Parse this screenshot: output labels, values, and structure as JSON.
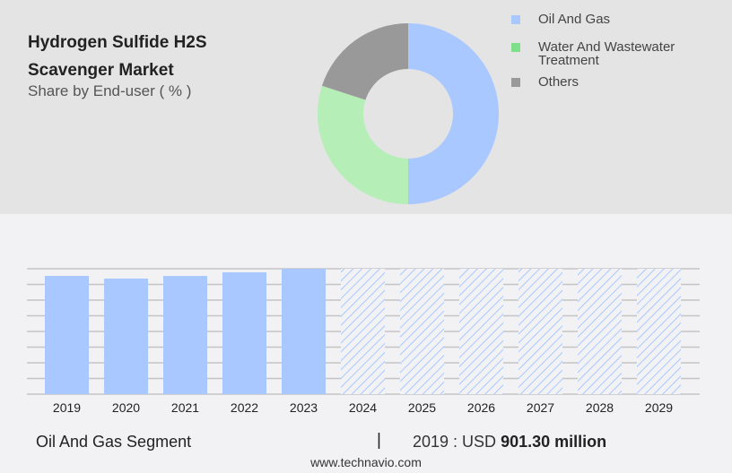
{
  "title": "Hydrogen Sulfide H2S Scavenger Market",
  "subtitle": "Share by End-user ( % )",
  "chart_data": [
    {
      "type": "pie",
      "donut": true,
      "categories": [
        "Oil And Gas",
        "Water And Wastewater Treatment",
        "Others"
      ],
      "values": [
        50,
        30,
        20
      ],
      "colors": [
        "#a8c8ff",
        "#b6eeb8",
        "#999999"
      ],
      "legend_colors": [
        "#a8c8ff",
        "#7ee08a",
        "#999999"
      ],
      "legend": "right"
    },
    {
      "type": "bar",
      "categories": [
        "2019",
        "2020",
        "2021",
        "2022",
        "2023",
        "2024",
        "2025",
        "2026",
        "2027",
        "2028",
        "2029"
      ],
      "values": [
        901.3,
        881,
        901,
        929,
        956,
        null,
        null,
        null,
        null,
        null,
        null
      ],
      "forecast_from": "2024",
      "color": "#a8c8ff",
      "grid": true,
      "unit": "USD million"
    }
  ],
  "footer": {
    "segment": "Oil And Gas Segment",
    "separator": "|",
    "year_label": "2019 : USD",
    "value": "901.30 million",
    "source": "www.technavio.com"
  }
}
